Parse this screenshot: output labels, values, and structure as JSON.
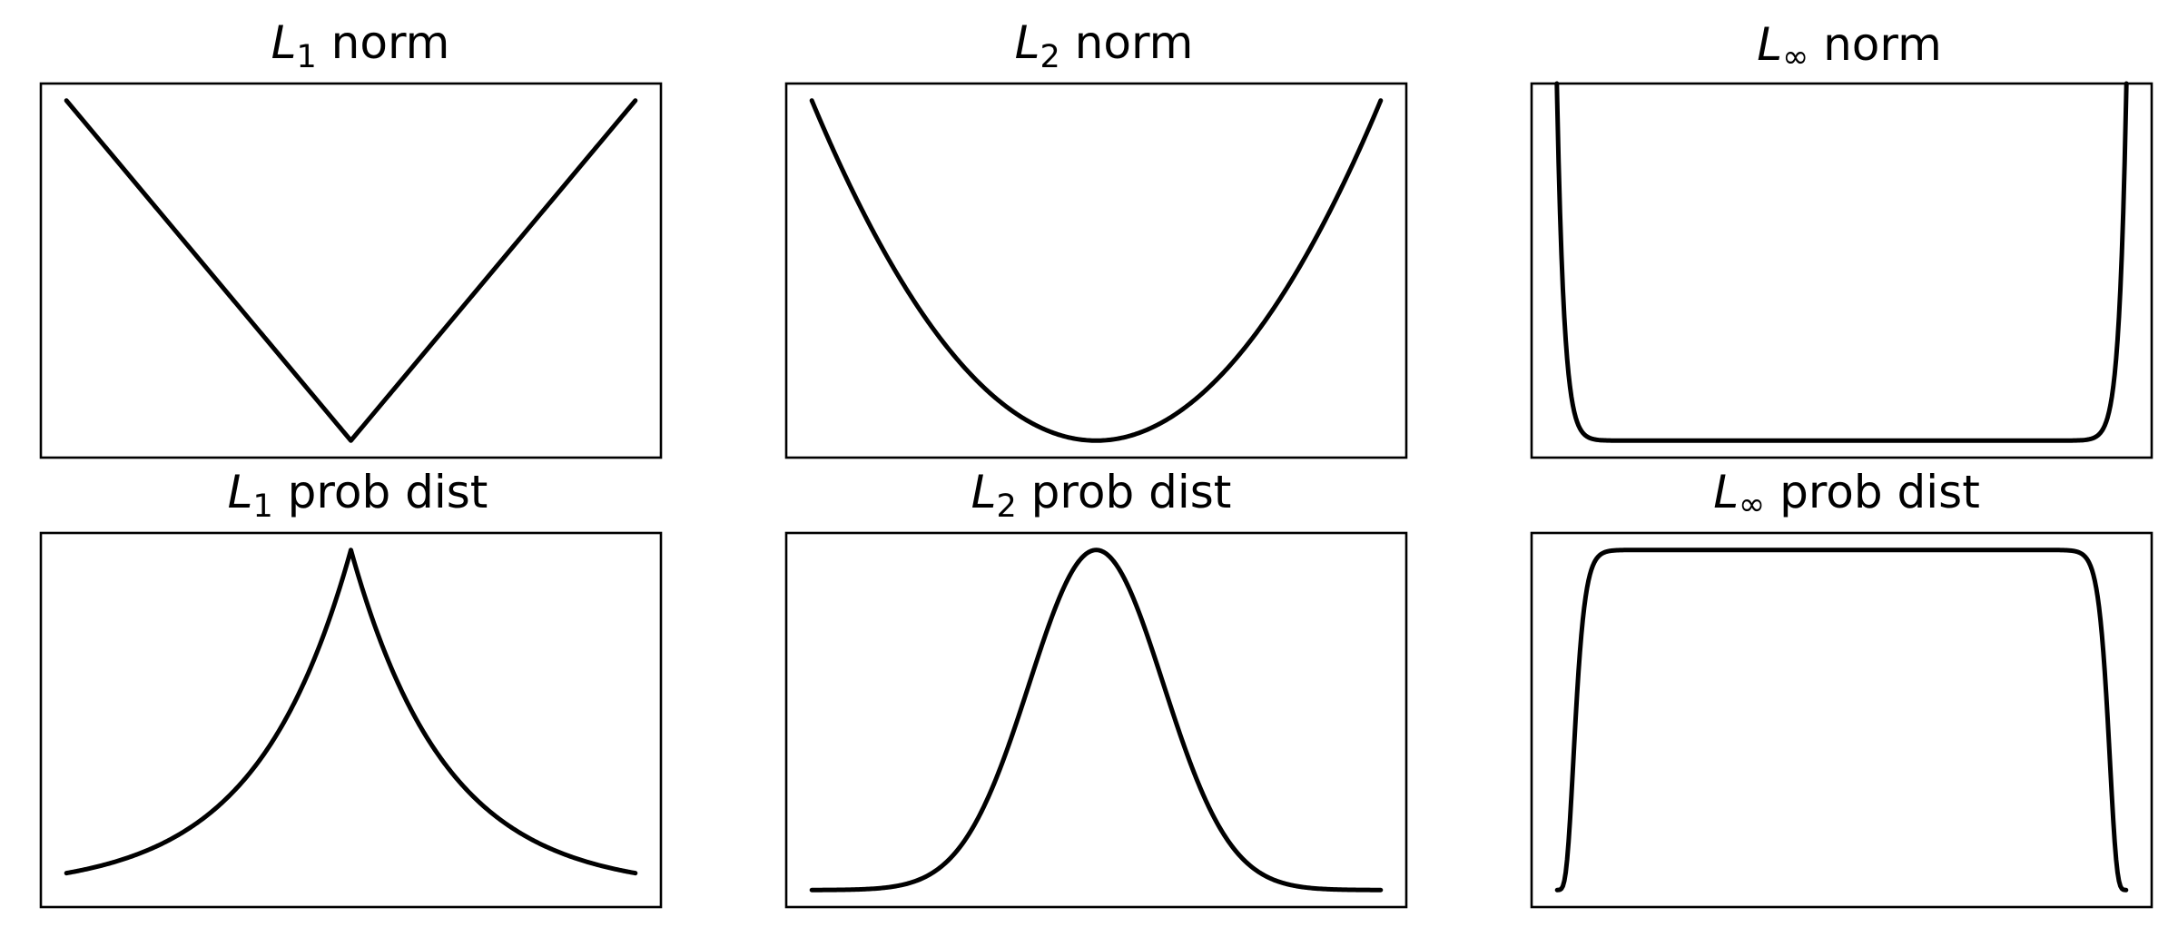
{
  "figure": {
    "line_color": "#000000",
    "background": "#ffffff"
  },
  "chart_data": [
    {
      "type": "line",
      "title": {
        "symbol": "L",
        "subscript": "1",
        "text": " norm"
      },
      "function": "l1_norm",
      "xlim": [
        -1,
        1
      ],
      "ylim": [
        -0.05,
        1.05
      ],
      "series": [
        {
          "color": "#000000"
        }
      ]
    },
    {
      "type": "line",
      "title": {
        "symbol": "L",
        "subscript": "2",
        "text": " norm"
      },
      "function": "l2_norm",
      "xlim": [
        -1,
        1
      ],
      "ylim": [
        -0.05,
        1.05
      ],
      "series": [
        {
          "color": "#000000"
        }
      ]
    },
    {
      "type": "line",
      "title": {
        "symbol": "L",
        "subscript": "∞",
        "text": " norm"
      },
      "function": "linf_norm",
      "xlim": [
        -1,
        1
      ],
      "ylim": [
        -0.05,
        1.05
      ],
      "series": [
        {
          "color": "#000000"
        }
      ]
    },
    {
      "type": "line",
      "title": {
        "symbol": "L",
        "subscript": "1",
        "text": " prob dist"
      },
      "function": "l1_prob",
      "xlim": [
        -1,
        1
      ],
      "ylim": [
        -0.05,
        1.05
      ],
      "series": [
        {
          "color": "#000000"
        }
      ]
    },
    {
      "type": "line",
      "title": {
        "symbol": "L",
        "subscript": "2",
        "text": " prob dist"
      },
      "function": "l2_prob",
      "xlim": [
        -1,
        1
      ],
      "ylim": [
        -0.05,
        1.05
      ],
      "series": [
        {
          "color": "#000000"
        }
      ]
    },
    {
      "type": "line",
      "title": {
        "symbol": "L",
        "subscript": "∞",
        "text": " prob dist"
      },
      "function": "linf_prob",
      "xlim": [
        -1,
        1
      ],
      "ylim": [
        -0.05,
        1.05
      ],
      "series": [
        {
          "color": "#000000"
        }
      ]
    }
  ]
}
